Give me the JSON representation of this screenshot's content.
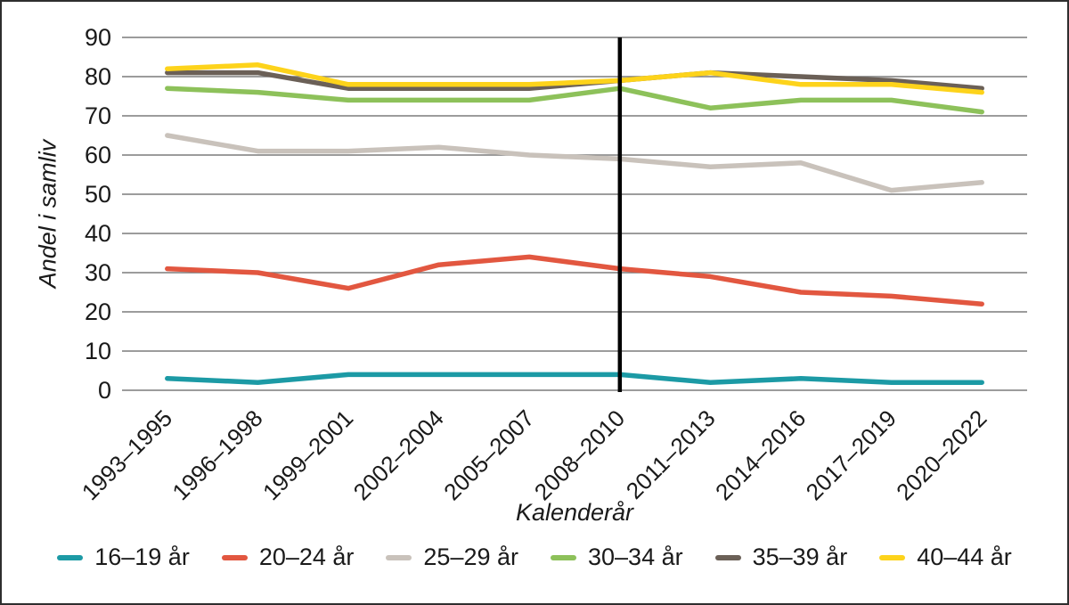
{
  "chart_data": {
    "type": "line",
    "title": "",
    "xlabel": "Kalenderår",
    "ylabel": "Andel i samliv",
    "ylim": [
      0,
      90
    ],
    "yticks": [
      0,
      10,
      20,
      30,
      40,
      50,
      60,
      70,
      80,
      90
    ],
    "grid": "horizontal",
    "legend_position": "bottom",
    "categories": [
      "1993–1995",
      "1996–1998",
      "1999–2001",
      "2002–2004",
      "2005–2007",
      "2008–2010",
      "2011–2013",
      "2014–2016",
      "2017–2019",
      "2020–2022"
    ],
    "series": [
      {
        "name": "16–19 år",
        "color": "#1C9AA5",
        "values": [
          3,
          2,
          4,
          4,
          4,
          4,
          2,
          3,
          2,
          2
        ]
      },
      {
        "name": "20–24 år",
        "color": "#E25740",
        "values": [
          31,
          30,
          26,
          32,
          34,
          31,
          29,
          25,
          24,
          22
        ]
      },
      {
        "name": "25–29 år",
        "color": "#C9C2BB",
        "values": [
          65,
          61,
          61,
          62,
          60,
          59,
          57,
          58,
          51,
          53
        ]
      },
      {
        "name": "30–34 år",
        "color": "#8DC15A",
        "values": [
          77,
          76,
          74,
          74,
          74,
          77,
          72,
          74,
          74,
          71
        ]
      },
      {
        "name": "35–39 år",
        "color": "#6B6057",
        "values": [
          81,
          81,
          77,
          77,
          77,
          79,
          81,
          80,
          79,
          77
        ]
      },
      {
        "name": "40–44 år",
        "color": "#FDD31B",
        "values": [
          82,
          83,
          78,
          78,
          78,
          79,
          81,
          78,
          78,
          76
        ]
      }
    ],
    "reference_line": {
      "category": "2008–2010",
      "category_index": 5,
      "color": "#000000"
    }
  },
  "colors": {
    "background": "#FFFFFF",
    "frame_border": "#2E2E2E",
    "gridline": "#7C7C7C",
    "text": "#1A1A1A"
  }
}
